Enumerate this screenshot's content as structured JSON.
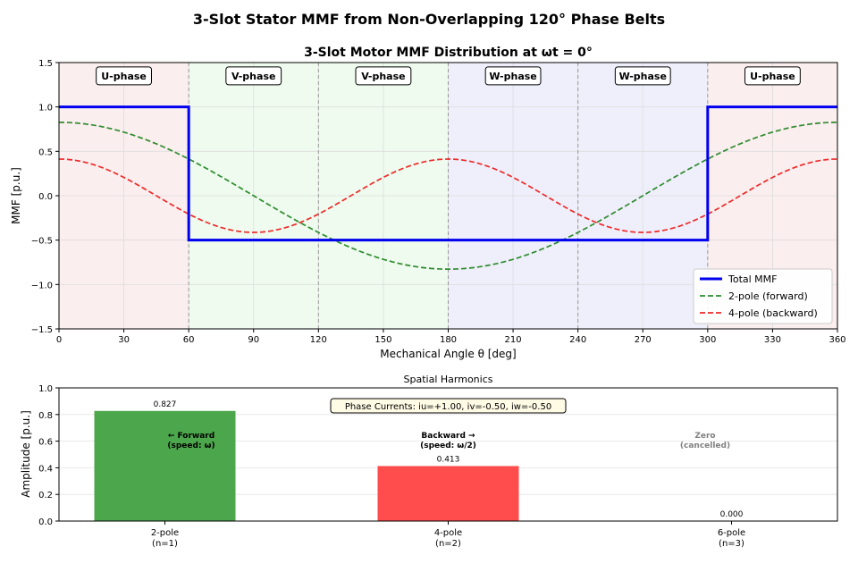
{
  "figure": {
    "suptitle": "3-Slot Stator MMF from Non-Overlapping 120° Phase Belts"
  },
  "colors": {
    "total": "#0000ee",
    "forward": "#2e8b2e",
    "backward": "#ee2a2a",
    "u_region": "#fbeeee",
    "v_region": "#eefbee",
    "w_region": "#efeffb",
    "bar_forward": "#4ca64c",
    "bar_backward": "#ff4c4c",
    "cancelled_text": "#808080",
    "info_box": "#fffbe5"
  },
  "chart_data": [
    {
      "type": "line",
      "title": "3-Slot Motor MMF Distribution at ωt = 0°",
      "xlabel": "Mechanical Angle θ [deg]",
      "ylabel": "MMF [p.u.]",
      "xlim": [
        0,
        360
      ],
      "ylim": [
        -1.5,
        1.5
      ],
      "xticks": [
        0,
        30,
        60,
        90,
        120,
        150,
        180,
        210,
        240,
        270,
        300,
        330,
        360
      ],
      "yticks": [
        -1.5,
        -1.0,
        -0.5,
        0.0,
        0.5,
        1.0,
        1.5
      ],
      "ytick_labels": [
        "−1.5",
        "−1.0",
        "−0.5",
        "0.0",
        "0.5",
        "1.0",
        "1.5"
      ],
      "grid": true,
      "legend_position": "bottom-right",
      "phase_regions": [
        {
          "label": "U-phase",
          "start": 0,
          "end": 60,
          "phase": "u"
        },
        {
          "label": "V-phase",
          "start": 60,
          "end": 120,
          "phase": "v"
        },
        {
          "label": "V-phase",
          "start": 120,
          "end": 180,
          "phase": "v"
        },
        {
          "label": "W-phase",
          "start": 180,
          "end": 240,
          "phase": "w"
        },
        {
          "label": "W-phase",
          "start": 240,
          "end": 300,
          "phase": "w"
        },
        {
          "label": "U-phase",
          "start": 300,
          "end": 360,
          "phase": "u"
        }
      ],
      "boundary_lines": [
        60,
        120,
        180,
        240,
        300
      ],
      "series": [
        {
          "name": "Total MMF",
          "style": "solid",
          "x": [
            0,
            60,
            60,
            300,
            300,
            360
          ],
          "y": [
            1.0,
            1.0,
            -0.5,
            -0.5,
            1.0,
            1.0
          ]
        },
        {
          "name": "2-pole (forward)",
          "style": "dashed",
          "formula": "amplitude*cos(theta)",
          "amplitude": 0.827,
          "harmonic": 1
        },
        {
          "name": "4-pole (backward)",
          "style": "dashed",
          "formula": "amplitude*cos(2*theta)",
          "amplitude": 0.413,
          "harmonic": 2
        }
      ]
    },
    {
      "type": "bar",
      "title": "Spatial Harmonics",
      "xlabel": "",
      "ylabel": "Amplitude [p.u.]",
      "ylim": [
        0,
        1.0
      ],
      "yticks": [
        0.0,
        0.2,
        0.4,
        0.6,
        0.8,
        1.0
      ],
      "ytick_labels": [
        "0.0",
        "0.2",
        "0.4",
        "0.6",
        "0.8",
        "1.0"
      ],
      "grid": true,
      "categories": [
        {
          "line1": "2-pole",
          "line2": "(n=1)"
        },
        {
          "line1": "4-pole",
          "line2": "(n=2)"
        },
        {
          "line1": "6-pole",
          "line2": "(n=3)"
        }
      ],
      "values": [
        0.827,
        0.413,
        0.0
      ],
      "value_labels": [
        "0.827",
        "0.413",
        "0.000"
      ],
      "annotations": [
        {
          "line1": "← Forward",
          "line2": "(speed: ω)"
        },
        {
          "line1": "Backward →",
          "line2": "(speed: ω/2)"
        },
        {
          "line1": "Zero",
          "line2": "(cancelled)"
        }
      ],
      "info_box": "Phase Currents: iu=+1.00, iv=-0.50, iw=-0.50"
    }
  ]
}
